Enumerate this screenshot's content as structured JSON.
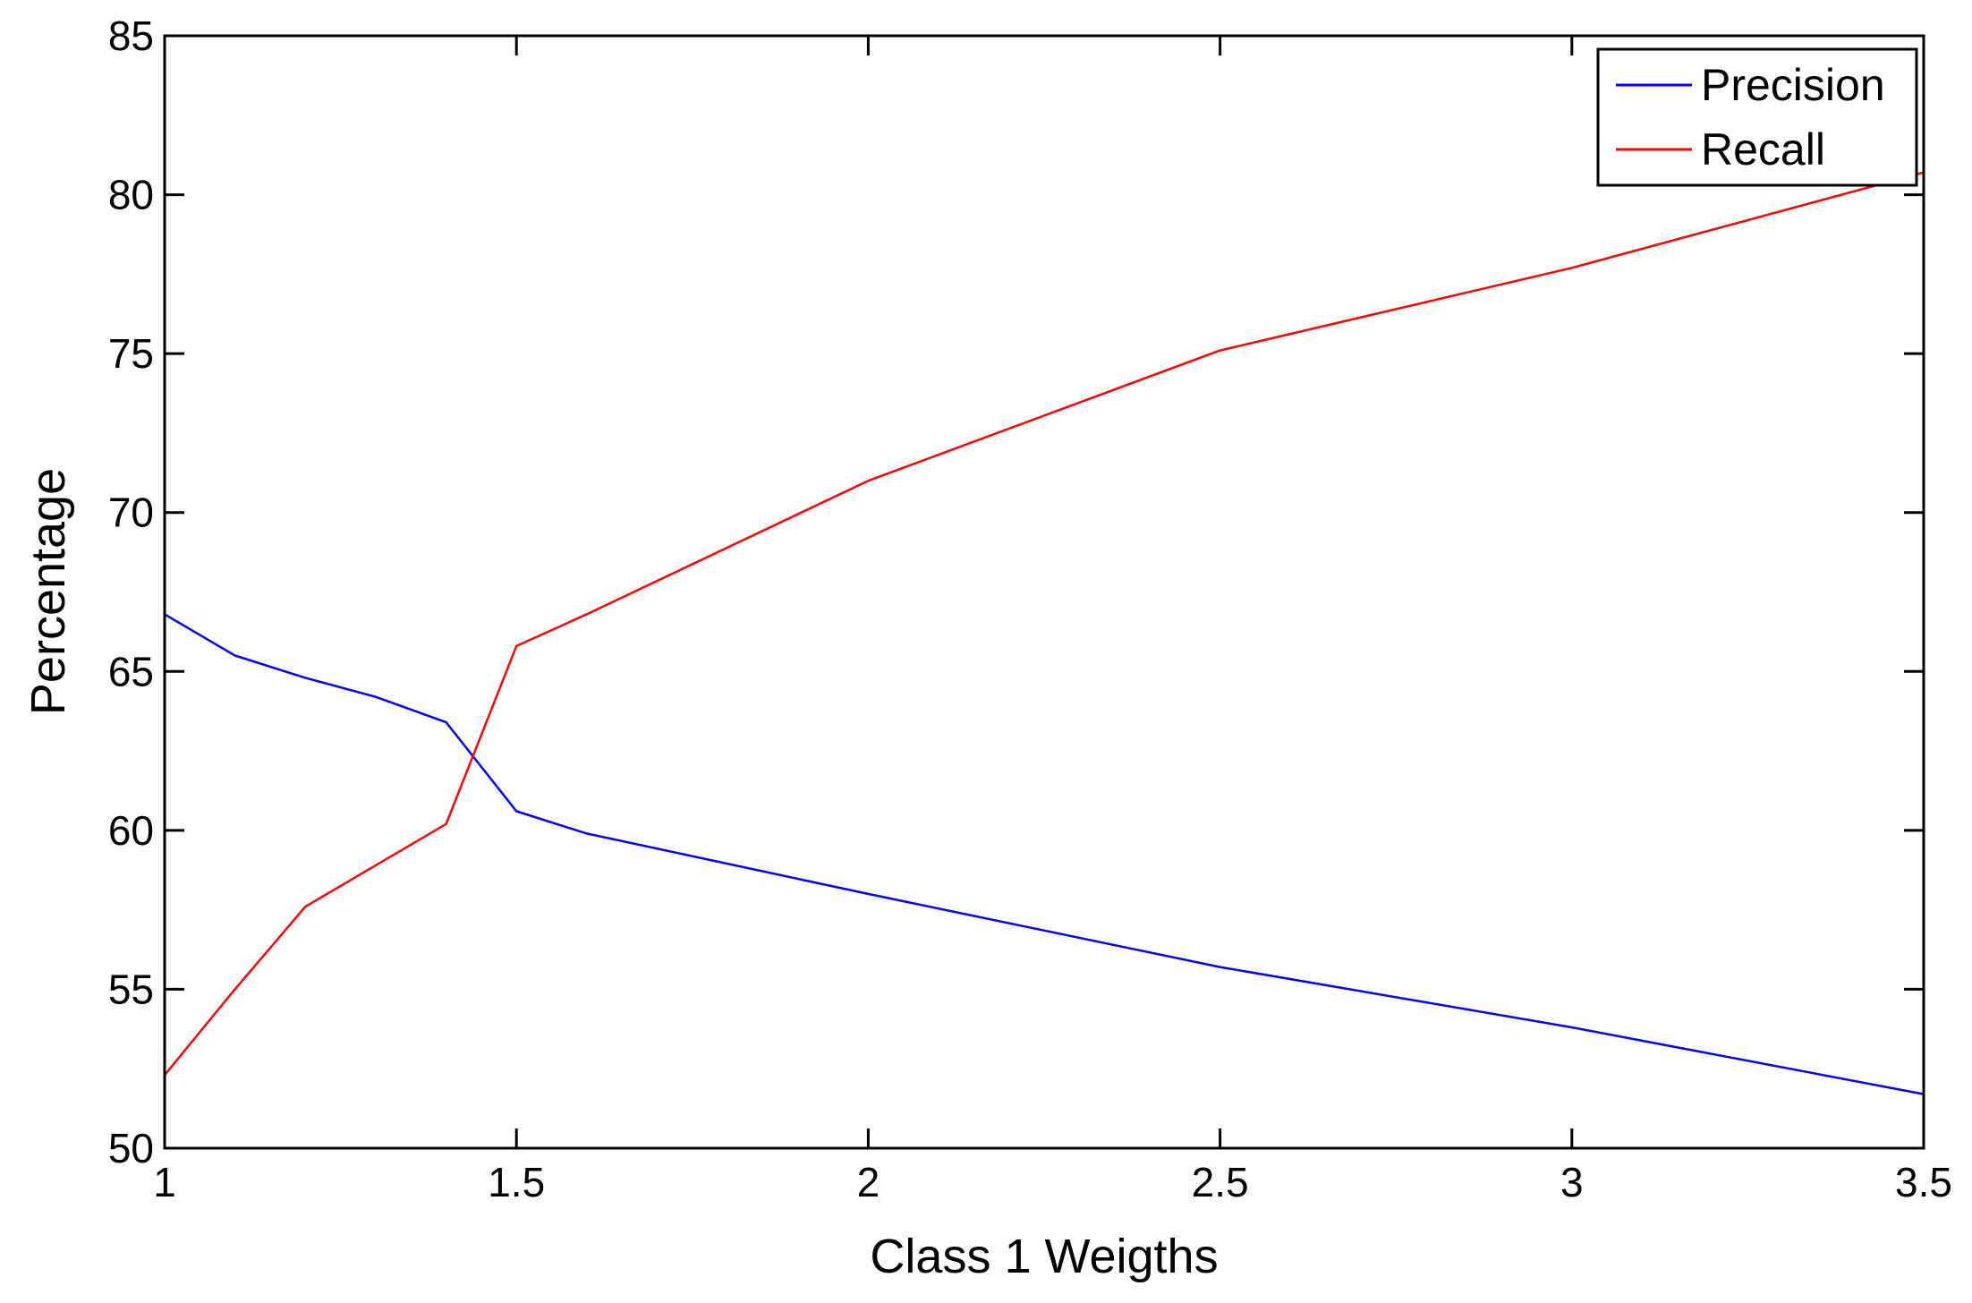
{
  "chart_data": {
    "type": "line",
    "title": "",
    "xlabel": "Class 1 Weigths",
    "ylabel": "Percentage",
    "xlim": [
      1,
      3.5
    ],
    "ylim": [
      50,
      85
    ],
    "xticks": [
      1,
      1.5,
      2,
      2.5,
      3,
      3.5
    ],
    "xtick_labels": [
      "1",
      "1.5",
      "2",
      "2.5",
      "3",
      "3.5"
    ],
    "yticks": [
      50,
      55,
      60,
      65,
      70,
      75,
      80,
      85
    ],
    "ytick_labels": [
      "50",
      "55",
      "60",
      "65",
      "70",
      "75",
      "80",
      "85"
    ],
    "grid": false,
    "legend_position": "top-right",
    "series": [
      {
        "name": "Precision",
        "color": "#0000ff",
        "x": [
          1,
          1.1,
          1.2,
          1.3,
          1.4,
          1.5,
          1.6,
          2,
          2.5,
          3,
          3.5
        ],
        "y": [
          66.8,
          65.5,
          64.8,
          64.2,
          63.4,
          60.6,
          59.9,
          58.0,
          55.7,
          53.8,
          51.7
        ]
      },
      {
        "name": "Recall",
        "color": "#ff0000",
        "x": [
          1,
          1.1,
          1.2,
          1.3,
          1.4,
          1.5,
          1.6,
          2,
          2.5,
          3,
          3.5
        ],
        "y": [
          52.3,
          55.0,
          57.6,
          58.9,
          60.2,
          65.8,
          66.8,
          71.0,
          75.1,
          77.7,
          80.7
        ]
      }
    ]
  }
}
